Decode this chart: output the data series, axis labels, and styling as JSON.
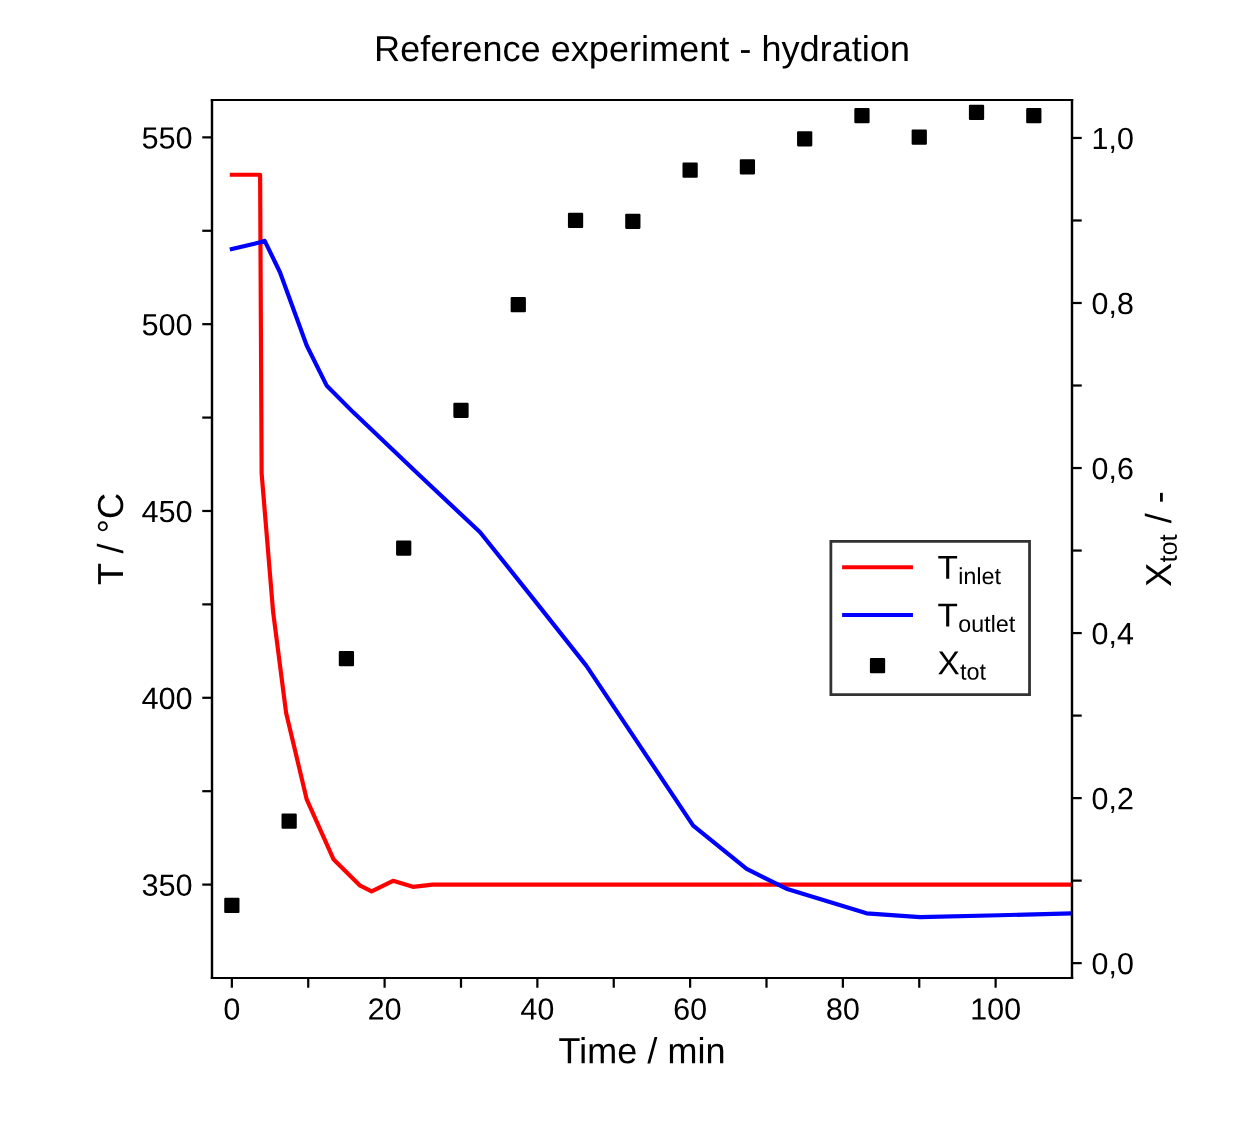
{
  "chart_data": {
    "type": "line",
    "title": "Reference experiment - hydration",
    "xlabel": "Time / min",
    "ylabel": "T / °C",
    "y2label": "X$_{tot}$ / -",
    "xlim": [
      -2.6,
      110
    ],
    "xticks": [
      0,
      {
        "value": 10,
        "label": null
      },
      20,
      {
        "value": 30,
        "label": null
      },
      40,
      {
        "value": 50,
        "label": null
      },
      60,
      {
        "value": 70,
        "label": null
      },
      80,
      {
        "value": 90,
        "label": null
      },
      100
    ],
    "ylim": [
      325,
      560
    ],
    "yticks": [
      350,
      {
        "value": 375,
        "label": null
      },
      400,
      {
        "value": 425,
        "label": null
      },
      450,
      {
        "value": 475,
        "label": null
      },
      500,
      {
        "value": 525,
        "label": null
      },
      550
    ],
    "y2lim": [
      -0.018,
      1.046
    ],
    "y2ticks": [
      {
        "value": 0,
        "label": "0,0"
      },
      {
        "value": 0.1,
        "label": null
      },
      {
        "value": 0.2,
        "label": "0,2"
      },
      {
        "value": 0.3,
        "label": null
      },
      {
        "value": 0.4,
        "label": "0,4"
      },
      {
        "value": 0.5,
        "label": null
      },
      {
        "value": 0.6,
        "label": "0,6"
      },
      {
        "value": 0.7,
        "label": null
      },
      {
        "value": 0.8,
        "label": "0,8"
      },
      {
        "value": 0.9,
        "label": null
      },
      {
        "value": 1.0,
        "label": "1,0"
      }
    ],
    "grid": false,
    "legend": "right",
    "series": [
      {
        "name": "T$_{inlet}$",
        "color": "#ff0000",
        "x": [
          0,
          3.7,
          3.9,
          5.4,
          7.1,
          9.8,
          13.3,
          16.8,
          18.3,
          21.1,
          23.7,
          26.3,
          110
        ],
        "values": [
          540,
          540,
          460,
          423,
          396,
          372.8,
          356.8,
          349.7,
          348.2,
          351,
          349.4,
          350,
          350
        ]
      },
      {
        "name": "T$_{outlet}$",
        "color": "#0000ff",
        "x": [
          0,
          3.7,
          4.3,
          6.3,
          9.8,
          12.4,
          15.9,
          24.6,
          32.5,
          39.5,
          46.4,
          53.4,
          60.4,
          67.4,
          72.6,
          83.1,
          90.1,
          100.5,
          110
        ],
        "values": [
          520.1,
          521.9,
          522.3,
          513.9,
          494.3,
          483.6,
          476.4,
          459.5,
          444.3,
          426.4,
          408.6,
          387.2,
          365.8,
          354.2,
          348.9,
          342.3,
          341.3,
          341.8,
          342.3
        ]
      },
      {
        "name": "X$_{tot}$",
        "color": "#000000",
        "type": "scatter",
        "axis": "y2",
        "marker": "square",
        "x": [
          0,
          7.5,
          15,
          22.5,
          30,
          37.5,
          45,
          52.5,
          60,
          67.5,
          75,
          82.5,
          90,
          97.5,
          105
        ],
        "values": [
          0.07,
          0.172,
          0.369,
          0.503,
          0.67,
          0.798,
          0.9,
          0.899,
          0.961,
          0.965,
          0.999,
          1.027,
          1.001,
          1.031,
          1.027
        ]
      }
    ]
  }
}
